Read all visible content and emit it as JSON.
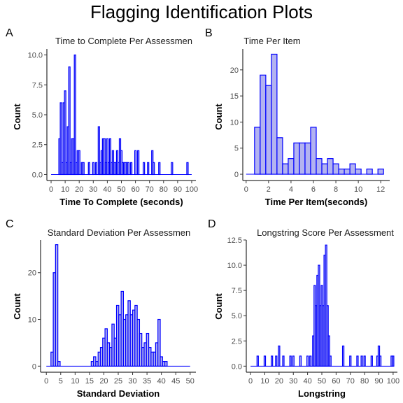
{
  "main_title": "Flagging Identification Plots",
  "colors": {
    "bar_fill": "#b3b3f0",
    "bar_stroke": "#0000ff",
    "axis": "#000000",
    "text": "#000000",
    "tick_text": "#4d4d4d"
  },
  "chart_data": [
    {
      "panel": "A",
      "type": "bar",
      "title": "Time to Complete Per Assessmen",
      "xlabel": "Time To Complete (seconds)",
      "ylabel": "Count",
      "xlim": [
        -3,
        103
      ],
      "ylim": [
        -0.5,
        10.5
      ],
      "xticks": [
        0,
        10,
        20,
        30,
        40,
        50,
        60,
        70,
        80,
        90,
        100
      ],
      "yticks": [
        0.0,
        2.5,
        5.0,
        7.5,
        10.0
      ],
      "ytick_labels": [
        "0.0",
        "2.5",
        "5.0",
        "7.5",
        "10.0"
      ],
      "bin_width": 1,
      "x_range": [
        0,
        100
      ],
      "bins": [
        [
          6,
          3
        ],
        [
          7,
          6
        ],
        [
          8,
          1
        ],
        [
          9,
          6
        ],
        [
          10,
          7
        ],
        [
          11,
          1
        ],
        [
          12,
          4
        ],
        [
          13,
          9
        ],
        [
          14,
          1
        ],
        [
          15,
          3
        ],
        [
          16,
          3
        ],
        [
          17,
          10
        ],
        [
          18,
          1
        ],
        [
          19,
          2
        ],
        [
          20,
          2
        ],
        [
          22,
          1
        ],
        [
          23,
          1
        ],
        [
          27,
          1
        ],
        [
          30,
          1
        ],
        [
          32,
          1
        ],
        [
          34,
          4
        ],
        [
          35,
          1
        ],
        [
          36,
          2
        ],
        [
          37,
          3
        ],
        [
          38,
          3
        ],
        [
          39,
          1
        ],
        [
          40,
          3
        ],
        [
          41,
          1
        ],
        [
          42,
          3
        ],
        [
          43,
          1
        ],
        [
          44,
          2
        ],
        [
          45,
          1
        ],
        [
          46,
          1
        ],
        [
          47,
          2
        ],
        [
          48,
          1
        ],
        [
          49,
          3
        ],
        [
          50,
          2
        ],
        [
          51,
          1
        ],
        [
          52,
          1
        ],
        [
          53,
          1
        ],
        [
          54,
          1
        ],
        [
          55,
          1
        ],
        [
          57,
          1
        ],
        [
          60,
          2
        ],
        [
          62,
          2
        ],
        [
          66,
          1
        ],
        [
          69,
          1
        ],
        [
          72,
          2
        ],
        [
          73,
          1
        ],
        [
          77,
          1
        ],
        [
          86,
          1
        ],
        [
          97,
          1
        ]
      ]
    },
    {
      "panel": "B",
      "type": "bar",
      "title": "Time Per Item",
      "xlabel": "Time Per Item(seconds)",
      "ylabel": "Count",
      "xlim": [
        -0.3,
        12.8
      ],
      "ylim": [
        -1.2,
        24
      ],
      "xticks": [
        0,
        2,
        4,
        6,
        8,
        10,
        12
      ],
      "yticks": [
        0,
        5,
        10,
        15,
        20
      ],
      "ytick_labels": [
        "0",
        "5",
        "10",
        "15",
        "20"
      ],
      "bin_width": 0.5,
      "x_range": [
        0,
        12
      ],
      "bins": [
        [
          1.0,
          9
        ],
        [
          1.5,
          19
        ],
        [
          2.0,
          17
        ],
        [
          2.5,
          23
        ],
        [
          3.0,
          7
        ],
        [
          3.5,
          2
        ],
        [
          4.0,
          3
        ],
        [
          4.5,
          6
        ],
        [
          5.0,
          6
        ],
        [
          5.5,
          6
        ],
        [
          6.0,
          9
        ],
        [
          6.5,
          3
        ],
        [
          7.0,
          2
        ],
        [
          7.5,
          3
        ],
        [
          8.0,
          2
        ],
        [
          8.5,
          1
        ],
        [
          9.0,
          1
        ],
        [
          9.5,
          2
        ],
        [
          10.0,
          1
        ],
        [
          11.0,
          1
        ],
        [
          12.0,
          1
        ]
      ]
    },
    {
      "panel": "C",
      "type": "bar",
      "title": "Standard Deviation Per Assessmen",
      "xlabel": "Standard Deviation",
      "ylabel": "Count",
      "xlim": [
        -2,
        52
      ],
      "ylim": [
        -1.3,
        27
      ],
      "xticks": [
        0,
        5,
        10,
        15,
        20,
        25,
        30,
        35,
        40,
        45,
        50
      ],
      "yticks": [
        0,
        10,
        20
      ],
      "ytick_labels": [
        "0",
        "10",
        "20"
      ],
      "bin_width": 0.8,
      "x_range": [
        0,
        50
      ],
      "bins": [
        [
          2.0,
          3
        ],
        [
          2.8,
          20
        ],
        [
          3.6,
          26
        ],
        [
          4.4,
          1
        ],
        [
          16.0,
          1
        ],
        [
          16.8,
          2
        ],
        [
          17.6,
          1
        ],
        [
          18.4,
          3
        ],
        [
          19.2,
          4
        ],
        [
          20.0,
          6
        ],
        [
          20.8,
          8
        ],
        [
          21.6,
          5
        ],
        [
          22.4,
          4
        ],
        [
          23.2,
          9
        ],
        [
          24.0,
          6
        ],
        [
          24.8,
          13
        ],
        [
          25.6,
          11
        ],
        [
          26.4,
          16
        ],
        [
          27.2,
          10
        ],
        [
          28.0,
          11
        ],
        [
          28.8,
          14
        ],
        [
          29.6,
          11
        ],
        [
          30.4,
          12
        ],
        [
          31.2,
          13
        ],
        [
          32.0,
          10
        ],
        [
          32.8,
          7
        ],
        [
          33.6,
          4
        ],
        [
          34.4,
          5
        ],
        [
          35.2,
          7
        ],
        [
          36.0,
          4
        ],
        [
          36.8,
          3
        ],
        [
          37.6,
          3
        ],
        [
          38.4,
          5
        ],
        [
          39.2,
          10
        ],
        [
          40.0,
          2
        ],
        [
          40.8,
          1
        ],
        [
          41.6,
          1
        ]
      ]
    },
    {
      "panel": "D",
      "type": "bar",
      "title": "Longstring Score Per Assessment",
      "xlabel": "Longstring",
      "ylabel": "Count",
      "xlim": [
        -3,
        103
      ],
      "ylim": [
        -0.6,
        12.5
      ],
      "xticks": [
        0,
        10,
        20,
        30,
        40,
        50,
        60,
        70,
        80,
        90,
        100
      ],
      "yticks": [
        0.0,
        2.5,
        5.0,
        7.5,
        10.0,
        12.5
      ],
      "ytick_labels": [
        "0.0",
        "2.5",
        "5.0",
        "7.5",
        "10.0",
        "12.5"
      ],
      "bin_width": 1,
      "x_range": [
        0,
        100
      ],
      "bins": [
        [
          5,
          1
        ],
        [
          10,
          1
        ],
        [
          15,
          1
        ],
        [
          18,
          1
        ],
        [
          20,
          2
        ],
        [
          23,
          1
        ],
        [
          28,
          1
        ],
        [
          30,
          1
        ],
        [
          35,
          1
        ],
        [
          40,
          1
        ],
        [
          42,
          1
        ],
        [
          44,
          3
        ],
        [
          45,
          8
        ],
        [
          46,
          6
        ],
        [
          47,
          9
        ],
        [
          48,
          10
        ],
        [
          49,
          6
        ],
        [
          50,
          8
        ],
        [
          51,
          6
        ],
        [
          52,
          11
        ],
        [
          53,
          12
        ],
        [
          54,
          6
        ],
        [
          55,
          3
        ],
        [
          56,
          1
        ],
        [
          65,
          2
        ],
        [
          70,
          1
        ],
        [
          75,
          1
        ],
        [
          78,
          1
        ],
        [
          80,
          1
        ],
        [
          85,
          1
        ],
        [
          89,
          1
        ],
        [
          90,
          2
        ],
        [
          91,
          1
        ],
        [
          99,
          1
        ],
        [
          100,
          1
        ]
      ]
    }
  ]
}
